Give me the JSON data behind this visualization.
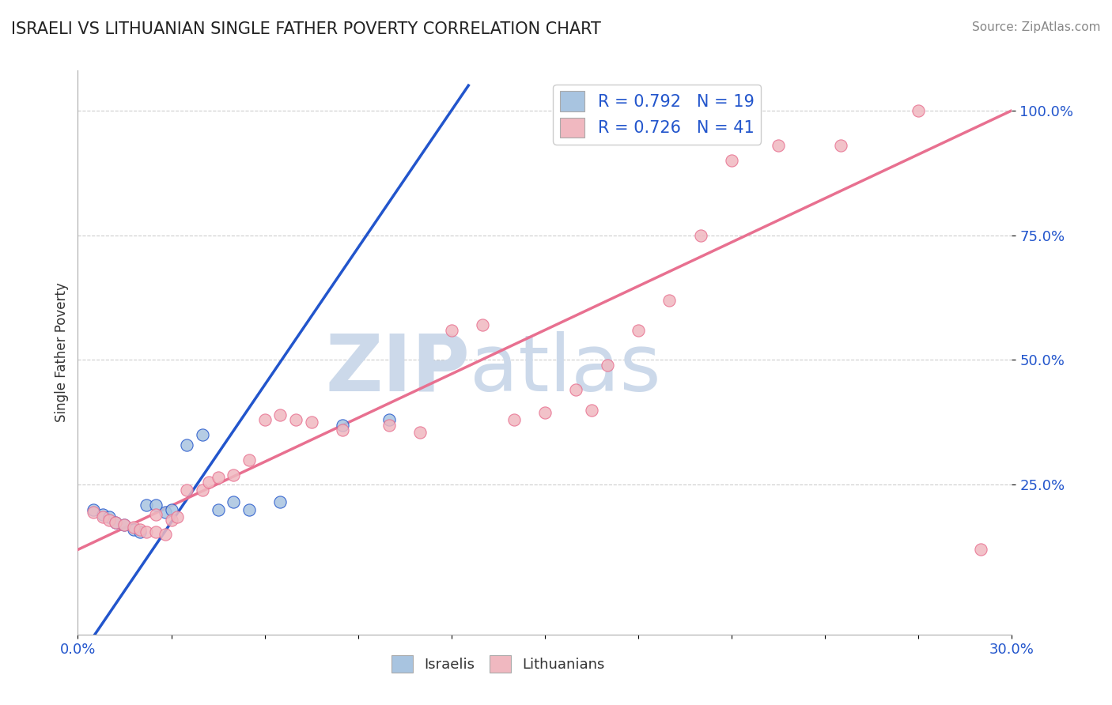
{
  "title": "ISRAELI VS LITHUANIAN SINGLE FATHER POVERTY CORRELATION CHART",
  "source": "Source: ZipAtlas.com",
  "ylabel": "Single Father Poverty",
  "xlim": [
    0.0,
    0.3
  ],
  "ylim": [
    -0.05,
    1.08
  ],
  "ytick_labels": [
    "25.0%",
    "50.0%",
    "75.0%",
    "100.0%"
  ],
  "ytick_vals": [
    0.25,
    0.5,
    0.75,
    1.0
  ],
  "xtick_labels": [
    "0.0%",
    "",
    "",
    "",
    "",
    "",
    "",
    "",
    "",
    "",
    "30.0%"
  ],
  "xtick_vals": [
    0.0,
    0.03,
    0.06,
    0.09,
    0.12,
    0.15,
    0.18,
    0.21,
    0.24,
    0.27,
    0.3
  ],
  "legend_R_israeli": "R = 0.792",
  "legend_N_israeli": "N = 19",
  "legend_R_lithuanian": "R = 0.726",
  "legend_N_lithuanian": "N = 41",
  "israeli_color": "#a8c4e0",
  "lithuanian_color": "#f0b8c0",
  "israeli_line_color": "#2255cc",
  "lithuanian_line_color": "#e87090",
  "watermark_zip": "ZIP",
  "watermark_atlas": "atlas",
  "watermark_color": "#ccd9ea",
  "background_color": "#ffffff",
  "grid_color": "#cccccc",
  "israelis_x": [
    0.005,
    0.008,
    0.01,
    0.012,
    0.015,
    0.018,
    0.02,
    0.022,
    0.025,
    0.028,
    0.03,
    0.035,
    0.04,
    0.045,
    0.05,
    0.055,
    0.065,
    0.085,
    0.1
  ],
  "israelis_y": [
    0.2,
    0.19,
    0.185,
    0.175,
    0.17,
    0.16,
    0.155,
    0.21,
    0.21,
    0.195,
    0.2,
    0.33,
    0.35,
    0.2,
    0.215,
    0.2,
    0.215,
    0.37,
    0.38
  ],
  "lithuanians_x": [
    0.005,
    0.008,
    0.01,
    0.012,
    0.015,
    0.018,
    0.02,
    0.022,
    0.025,
    0.025,
    0.028,
    0.03,
    0.032,
    0.035,
    0.04,
    0.042,
    0.045,
    0.05,
    0.055,
    0.06,
    0.065,
    0.07,
    0.075,
    0.085,
    0.1,
    0.11,
    0.12,
    0.13,
    0.14,
    0.15,
    0.16,
    0.165,
    0.17,
    0.18,
    0.19,
    0.2,
    0.21,
    0.225,
    0.245,
    0.27,
    0.29
  ],
  "lithuanians_y": [
    0.195,
    0.185,
    0.18,
    0.175,
    0.17,
    0.165,
    0.16,
    0.155,
    0.155,
    0.19,
    0.15,
    0.18,
    0.185,
    0.24,
    0.24,
    0.255,
    0.265,
    0.27,
    0.3,
    0.38,
    0.39,
    0.38,
    0.375,
    0.36,
    0.37,
    0.355,
    0.56,
    0.57,
    0.38,
    0.395,
    0.44,
    0.4,
    0.49,
    0.56,
    0.62,
    0.75,
    0.9,
    0.93,
    0.93,
    1.0,
    0.12
  ]
}
